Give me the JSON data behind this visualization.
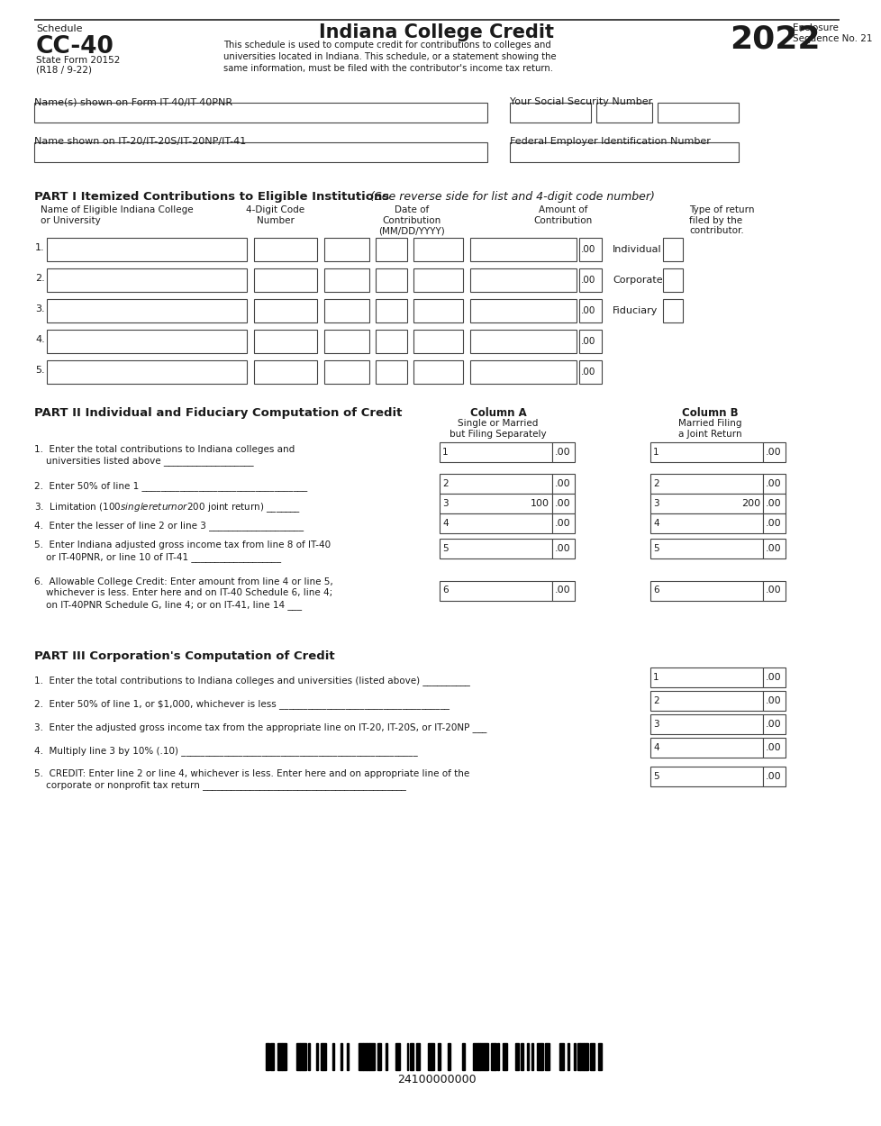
{
  "title": "Indiana College Credit",
  "schedule_label": "Schedule",
  "schedule_num": "CC-40",
  "form_num": "State Form 20152",
  "form_rev": "(R18 / 9-22)",
  "year": "2022",
  "enclosure": "Enclosure",
  "seq": "Sequence No. 21",
  "desc_lines": [
    "This schedule is used to compute credit for contributions to colleges and",
    "universities located in Indiana. This schedule, or a statement showing the",
    "same information, must be filed with the contributor's income tax return."
  ],
  "field1_label": "Name(s) shown on Form IT-40/IT-40PNR",
  "field2_label": "Your Social Security Number",
  "field3_label": "Name shown on IT-20/IT-20S/IT-20NP/IT-41",
  "field4_label": "Federal Employer Identification Number",
  "part1_title": "PART I Itemized Contributions to Eligible Institutions",
  "part1_italic": "(See reverse side for list and 4-digit code number)",
  "type_labels": [
    "Individual",
    "Corporate",
    "Fiduciary"
  ],
  "part2_title": "PART II Individual and Fiduciary Computation of Credit",
  "colA_label": "Column A",
  "colA_sub1": "Single or Married",
  "colA_sub2": "but Filing Separately",
  "colB_label": "Column B",
  "colB_sub1": "Married Filing",
  "colB_sub2": "a Joint Return",
  "part2_lines": [
    [
      "1.",
      "Enter the total contributions to Indiana colleges and",
      "universities listed above"
    ],
    [
      "2.",
      "Enter 50% of line 1",
      ""
    ],
    [
      "3.",
      "Limitation ($100 single return or $200 joint return)",
      ""
    ],
    [
      "4.",
      "Enter the lesser of line 2 or line 3",
      ""
    ],
    [
      "5.",
      "Enter Indiana adjusted gross income tax from line 8 of IT-40",
      "or IT-40PNR, or line 10 of IT-41"
    ],
    [
      "6.",
      "Allowable College Credit: Enter amount from line 4 or line 5,",
      "whichever is less. Enter here and on IT-40 Schedule 6, line 4;",
      "on IT-40PNR Schedule G, line 4; or on IT-41, line 14"
    ]
  ],
  "line3_valA": "100",
  "line3_valB": "200",
  "part3_title": "PART III Corporation's Computation of Credit",
  "part3_lines": [
    [
      "1.",
      "Enter the total contributions to Indiana colleges and universities (listed above)",
      ""
    ],
    [
      "2.",
      "Enter 50% of line 1, or $1,000, whichever is less",
      ""
    ],
    [
      "3.",
      "Enter the adjusted gross income tax from the appropriate line on IT-20, IT-20S, or IT-20NP",
      ""
    ],
    [
      "4.",
      "Multiply line 3 by 10% (.10)",
      ""
    ],
    [
      "5.",
      "CREDIT: Enter line 2 or line 4, whichever is less. Enter here and on appropriate line of the",
      "corporate or nonprofit tax return"
    ]
  ],
  "barcode_num": "24100000000",
  "bg_color": "#ffffff",
  "text_color": "#1a1a1a"
}
